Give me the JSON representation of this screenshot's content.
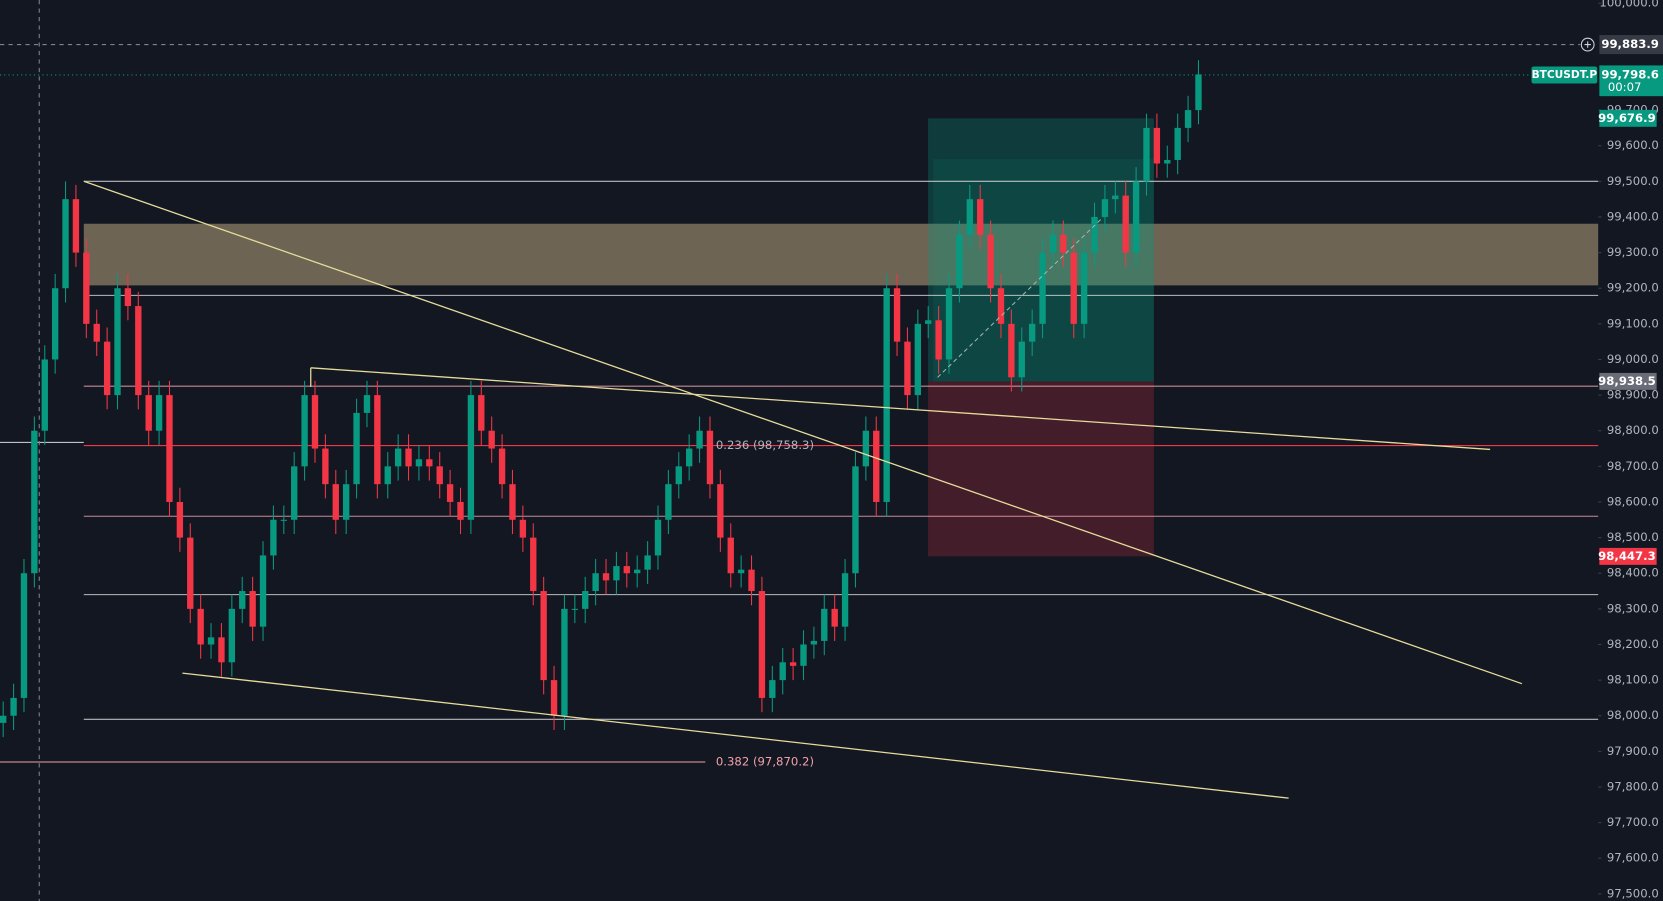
{
  "chart_data": {
    "type": "candlestick",
    "symbol": "BTCUSDT.P",
    "up_color": "#089981",
    "down_color": "#f23645",
    "open": [
      97980,
      98000,
      98050,
      98400,
      98800,
      99000,
      99200,
      99450,
      99300,
      99100,
      99050,
      98900,
      99200,
      99150,
      98900,
      98800,
      98900,
      98600,
      98500,
      98300,
      98200,
      98220,
      98150,
      98300,
      98350,
      98250,
      98450,
      98550,
      98550,
      98700,
      98900,
      98750,
      98650,
      98550,
      98650,
      98850,
      98900,
      98650,
      98700,
      98750,
      98700,
      98720,
      98700,
      98650,
      98600,
      98550,
      98900,
      98800,
      98750,
      98650,
      98550,
      98500,
      98350,
      98100,
      98000,
      98300,
      98300,
      98350,
      98400,
      98380,
      98420,
      98400,
      98410,
      98450,
      98550,
      98650,
      98700,
      98750,
      98800,
      98650,
      98500,
      98400,
      98410,
      98350,
      98050,
      98100,
      98150,
      98140,
      98200,
      98210,
      98300,
      98250,
      98400,
      98700,
      98800,
      98600,
      99200,
      99050,
      98900,
      99100,
      99110,
      99000,
      99200,
      99350,
      99450,
      99350,
      99200,
      99100,
      98950,
      99050,
      99100,
      99300,
      99350,
      99300,
      99100,
      99300,
      99400,
      99450,
      99460,
      99300,
      99500,
      99650,
      99550,
      99560,
      99650,
      99700
    ],
    "high": [
      98040,
      98090,
      98440,
      98840,
      99040,
      99240,
      99500,
      99490,
      99340,
      99140,
      99090,
      99240,
      99240,
      99190,
      98940,
      98940,
      98940,
      98640,
      98540,
      98340,
      98260,
      98260,
      98340,
      98390,
      98390,
      98490,
      98590,
      98590,
      98740,
      98940,
      98940,
      98790,
      98690,
      98690,
      98890,
      98940,
      98940,
      98740,
      98790,
      98790,
      98760,
      98760,
      98740,
      98690,
      98640,
      98940,
      98940,
      98840,
      98790,
      98690,
      98590,
      98540,
      98390,
      98140,
      98340,
      98340,
      98390,
      98440,
      98440,
      98460,
      98460,
      98450,
      98490,
      98590,
      98690,
      98740,
      98790,
      98840,
      98840,
      98690,
      98540,
      98450,
      98450,
      98390,
      98140,
      98190,
      98190,
      98240,
      98250,
      98340,
      98340,
      98440,
      98740,
      98840,
      98840,
      99240,
      99240,
      99090,
      99140,
      99150,
      99150,
      99240,
      99390,
      99490,
      99490,
      99390,
      99240,
      99140,
      99090,
      99140,
      99340,
      99390,
      99390,
      99340,
      99340,
      99440,
      99490,
      99500,
      99500,
      99540,
      99690,
      99690,
      99600,
      99690,
      99740,
      99840
    ],
    "low": [
      97940,
      97960,
      98010,
      98360,
      98760,
      98960,
      99160,
      99260,
      99060,
      99010,
      98860,
      98860,
      99110,
      98860,
      98760,
      98760,
      98560,
      98460,
      98260,
      98160,
      98160,
      98110,
      98110,
      98260,
      98210,
      98210,
      98410,
      98510,
      98510,
      98660,
      98710,
      98610,
      98510,
      98510,
      98610,
      98810,
      98610,
      98610,
      98660,
      98660,
      98660,
      98660,
      98610,
      98560,
      98510,
      98510,
      98760,
      98710,
      98610,
      98510,
      98460,
      98310,
      98060,
      97960,
      97960,
      98260,
      98260,
      98310,
      98340,
      98340,
      98360,
      98360,
      98370,
      98410,
      98510,
      98610,
      98660,
      98710,
      98610,
      98460,
      98360,
      98360,
      98310,
      98010,
      98010,
      98060,
      98100,
      98100,
      98160,
      98170,
      98210,
      98210,
      98360,
      98660,
      98560,
      98560,
      99010,
      98860,
      98860,
      99060,
      98960,
      98960,
      99160,
      99310,
      99310,
      99160,
      99060,
      98910,
      98910,
      99010,
      99060,
      99260,
      99260,
      99060,
      99060,
      99260,
      99360,
      99410,
      99260,
      99260,
      99460,
      99510,
      99510,
      99520,
      99610,
      99660
    ],
    "close": [
      98000,
      98050,
      98400,
      98800,
      99000,
      99200,
      99450,
      99300,
      99100,
      99050,
      98900,
      99200,
      99150,
      98900,
      98800,
      98900,
      98600,
      98500,
      98300,
      98200,
      98220,
      98150,
      98300,
      98350,
      98250,
      98450,
      98550,
      98550,
      98700,
      98900,
      98750,
      98650,
      98550,
      98650,
      98850,
      98900,
      98650,
      98700,
      98750,
      98700,
      98720,
      98700,
      98650,
      98600,
      98550,
      98900,
      98800,
      98750,
      98650,
      98550,
      98500,
      98350,
      98100,
      98000,
      98300,
      98300,
      98350,
      98400,
      98380,
      98420,
      98400,
      98410,
      98450,
      98550,
      98650,
      98700,
      98750,
      98800,
      98650,
      98500,
      98400,
      98410,
      98350,
      98050,
      98100,
      98150,
      98140,
      98200,
      98210,
      98300,
      98250,
      98400,
      98700,
      98800,
      98600,
      99200,
      99050,
      98900,
      99100,
      99110,
      99000,
      99200,
      99350,
      99450,
      99350,
      99200,
      99100,
      98950,
      99050,
      99100,
      99300,
      99350,
      99300,
      99100,
      99300,
      99400,
      99450,
      99460,
      99300,
      99500,
      99650,
      99550,
      99560,
      99650,
      99700,
      99800
    ],
    "ylim": [
      97480,
      100009
    ],
    "yticks": [
      {
        "value": 100000,
        "label": "100,000.0"
      },
      {
        "value": 99700,
        "label": "99,700.0"
      },
      {
        "value": 99600,
        "label": "99,600.0"
      },
      {
        "value": 99500,
        "label": "99,500.0"
      },
      {
        "value": 99400,
        "label": "99,400.0"
      },
      {
        "value": 99300,
        "label": "99,300.0"
      },
      {
        "value": 99200,
        "label": "99,200.0"
      },
      {
        "value": 99100,
        "label": "99,100.0"
      },
      {
        "value": 99000,
        "label": "99,000.0"
      },
      {
        "value": 98900,
        "label": "98,900.0"
      },
      {
        "value": 98800,
        "label": "98,800.0"
      },
      {
        "value": 98700,
        "label": "98,700.0"
      },
      {
        "value": 98600,
        "label": "98,600.0"
      },
      {
        "value": 98500,
        "label": "98,500.0"
      },
      {
        "value": 98400,
        "label": "98,400.0"
      },
      {
        "value": 98300,
        "label": "98,300.0"
      },
      {
        "value": 98200,
        "label": "98,200.0"
      },
      {
        "value": 98100,
        "label": "98,100.0"
      },
      {
        "value": 98000,
        "label": "98,000.0"
      },
      {
        "value": 97900,
        "label": "97,900.0"
      },
      {
        "value": 97800,
        "label": "97,800.0"
      },
      {
        "value": 97700,
        "label": "97,700.0"
      },
      {
        "value": 97600,
        "label": "97,600.0"
      },
      {
        "value": 97500,
        "label": "97,500.0"
      }
    ],
    "levels": [
      {
        "value": 99500,
        "color": "#d8d8d8"
      },
      {
        "value": 99180,
        "color": "#d8d8d8"
      },
      {
        "value": 98925,
        "color": "#e8a0a8"
      },
      {
        "value": 98560,
        "color": "#e8a0a8"
      },
      {
        "value": 98340,
        "color": "#d8d8d8"
      },
      {
        "value": 97990,
        "color": "#d8d8d8"
      }
    ],
    "zone": {
      "low": 99208,
      "high": 99381,
      "color": "#8c7f64"
    },
    "position": {
      "target": 99676.9,
      "entry": 98938.5,
      "stop": 98447.3
    },
    "fib_labels": [
      {
        "label": "0.236 (98,758.3)",
        "value": 98758.3,
        "color": "#f23645"
      },
      {
        "label": "0.382 (97,870.2)",
        "value": 97870.2,
        "color": "#f2a0a8"
      }
    ],
    "crosshair": {
      "value": 99883.9,
      "label": "99,883.9"
    },
    "last_price": {
      "value": 99798.6,
      "label": "99,798.6",
      "countdown": "00:07"
    },
    "price_tags": [
      {
        "value": 99676.9,
        "label": "99,676.9",
        "color": "#089981"
      },
      {
        "value": 98938.5,
        "label": "98,938.5",
        "color": "#6a6d78"
      },
      {
        "value": 98447.3,
        "label": "98,447.3",
        "color": "#f23645"
      }
    ]
  }
}
